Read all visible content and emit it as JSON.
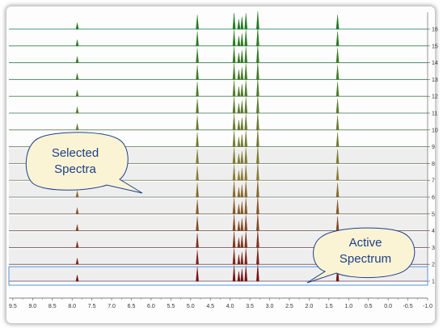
{
  "view": {
    "title": "",
    "x_axis": {
      "min": -1.0,
      "max": 9.6,
      "reversed": true,
      "ticks": [
        "9.5",
        "9.0",
        "8.5",
        "8.0",
        "7.5",
        "7.0",
        "6.5",
        "6.0",
        "5.5",
        "5.0",
        "4.5",
        "4.0",
        "3.5",
        "3.0",
        "2.5",
        "2.0",
        "1.5",
        "1.0",
        "0.5",
        "0.0",
        "-0.5",
        "-1.0"
      ],
      "tick_values": [
        9.5,
        9.0,
        8.5,
        8.0,
        7.5,
        7.0,
        6.5,
        6.0,
        5.5,
        5.0,
        4.5,
        4.0,
        3.5,
        3.0,
        2.5,
        2.0,
        1.5,
        1.0,
        0.5,
        0.0,
        -0.5,
        -1.0
      ]
    },
    "spectra": {
      "count": 16,
      "labels": [
        "1",
        "2",
        "3",
        "4",
        "5",
        "6",
        "7",
        "8",
        "9",
        "10",
        "11",
        "12",
        "13",
        "14",
        "15",
        "16"
      ],
      "peaks_ppm": [
        7.87,
        4.83,
        3.9,
        3.78,
        3.7,
        3.6,
        3.3,
        1.28
      ],
      "peaks_rel": [
        0.35,
        0.8,
        0.9,
        0.55,
        0.7,
        0.9,
        1.0,
        0.8
      ],
      "selected_range": [
        1,
        8
      ],
      "active_index": 1,
      "colors": {
        "low": "#7a1010",
        "mid": "#8a7a30",
        "high": "#1e7a1e",
        "baseline": "#a8c8e8",
        "active_box": "#6fa6df",
        "selection_band": "#eeeeee"
      }
    },
    "callouts": {
      "selected": {
        "line1": "Selected",
        "line2": "Spectra"
      },
      "active": {
        "line1": "Active",
        "line2": "Spectrum"
      }
    },
    "callout_colors": {
      "fill": "#fbf4d4",
      "stroke": "#1d3f8a",
      "text": "#1d3f8a"
    }
  }
}
